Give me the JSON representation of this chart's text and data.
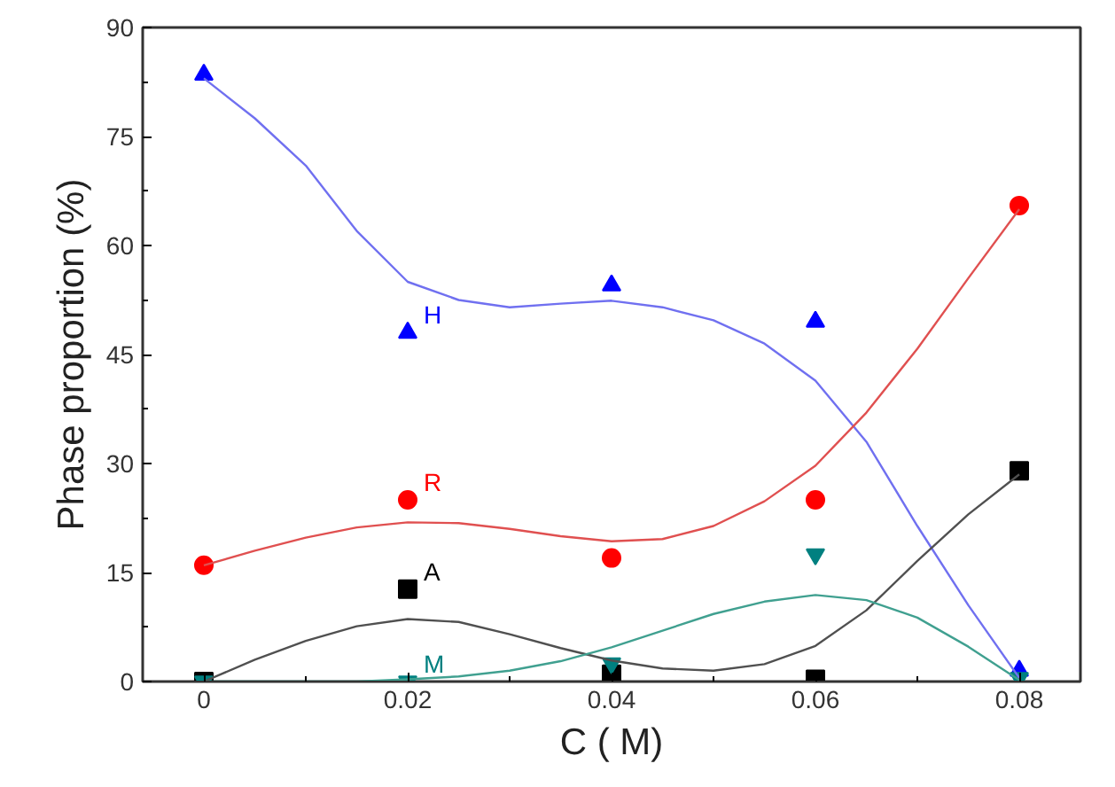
{
  "chart_data": {
    "type": "scatter",
    "xlabel": "C ( M)",
    "ylabel": "Phase proportion (%)",
    "x": [
      0,
      0.02,
      0.04,
      0.06,
      0.08
    ],
    "series": [
      {
        "name": "H",
        "color": "#0000ff",
        "marker": "triangle",
        "values": [
          83.5,
          48,
          54.5,
          49.5,
          1.5
        ]
      },
      {
        "name": "R",
        "color": "#ff0000",
        "marker": "circle",
        "values": [
          16,
          25,
          17,
          25,
          65.5
        ]
      },
      {
        "name": "A",
        "color": "#000000",
        "marker": "square",
        "values": [
          0,
          12.7,
          1,
          0.3,
          29
        ]
      },
      {
        "name": "M",
        "color": "#008080",
        "marker": "triangle",
        "values": [
          0,
          0,
          2.5,
          17.5,
          0.5
        ]
      },
      {
        "type": "line",
        "color": "#7070f0",
        "x": [
          0,
          0.005,
          0.01,
          0.015,
          0.02,
          0.025,
          0.03,
          0.035,
          0.04,
          0.045,
          0.05,
          0.055,
          0.06,
          0.065,
          0.07,
          0.075,
          0.08
        ],
        "values": [
          83,
          77.5,
          71,
          62,
          55,
          52.5,
          51.5,
          52,
          52.4,
          51.5,
          49.7,
          46.5,
          41.4,
          33,
          21.4,
          10.5,
          0.5
        ]
      },
      {
        "type": "line",
        "color": "#e05050",
        "x": [
          0,
          0.005,
          0.01,
          0.015,
          0.02,
          0.025,
          0.03,
          0.035,
          0.04,
          0.045,
          0.05,
          0.055,
          0.06,
          0.065,
          0.07,
          0.075,
          0.08
        ],
        "values": [
          16,
          18,
          19.8,
          21.2,
          21.9,
          21.8,
          21,
          20,
          19.3,
          19.6,
          21.4,
          24.8,
          29.7,
          37,
          45.8,
          55.5,
          65
        ]
      },
      {
        "type": "line",
        "color": "#505050",
        "x": [
          0,
          0.005,
          0.01,
          0.015,
          0.02,
          0.025,
          0.03,
          0.035,
          0.04,
          0.045,
          0.05,
          0.055,
          0.06,
          0.065,
          0.07,
          0.075,
          0.08
        ],
        "values": [
          0,
          3,
          5.6,
          7.6,
          8.6,
          8.2,
          6.5,
          4.6,
          2.9,
          1.8,
          1.5,
          2.4,
          4.9,
          9.8,
          16.6,
          23,
          28.5
        ]
      },
      {
        "type": "line",
        "color": "#40a090",
        "x": [
          0,
          0.005,
          0.01,
          0.015,
          0.02,
          0.025,
          0.03,
          0.035,
          0.04,
          0.045,
          0.05,
          0.055,
          0.06,
          0.065,
          0.07,
          0.075,
          0.08
        ],
        "values": [
          0,
          0,
          0,
          0,
          0.3,
          0.7,
          1.5,
          2.8,
          4.7,
          7,
          9.3,
          11,
          11.9,
          11.2,
          8.8,
          4.8,
          0.2
        ]
      }
    ],
    "xlim": [
      -0.006,
      0.086
    ],
    "ylim": [
      0,
      90
    ],
    "xticks": [
      0,
      0.02,
      0.04,
      0.06,
      0.08
    ],
    "yticks": [
      0,
      15,
      30,
      45,
      60,
      75,
      90
    ],
    "grid": false
  }
}
